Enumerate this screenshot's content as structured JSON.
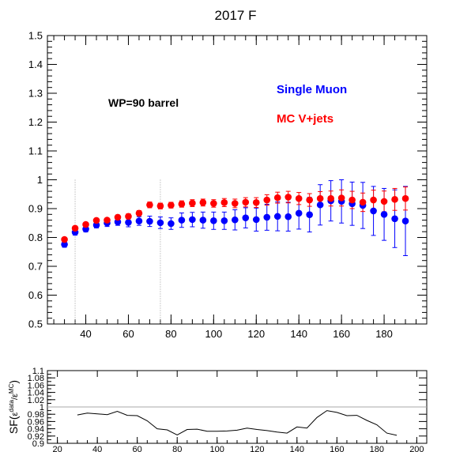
{
  "chart_data": [
    {
      "type": "scatter",
      "title": "2017 F",
      "xlabel": "",
      "ylabel": "",
      "xlim": [
        22,
        200
      ],
      "ylim": [
        0.5,
        1.5
      ],
      "xticks": [
        40,
        60,
        80,
        100,
        120,
        140,
        160,
        180
      ],
      "yticks": [
        0.5,
        0.6,
        0.7,
        0.8,
        0.9,
        1,
        1.1,
        1.2,
        1.3,
        1.4,
        1.5
      ],
      "annotation": "WP=90 barrel",
      "vlines": [
        35,
        75
      ],
      "series": [
        {
          "name": "Single Muon",
          "color": "#0000ff",
          "x": [
            30,
            35,
            40,
            45,
            50,
            55,
            60,
            65,
            70,
            75,
            80,
            85,
            90,
            95,
            100,
            105,
            110,
            115,
            120,
            125,
            130,
            135,
            140,
            145,
            150,
            155,
            160,
            165,
            170,
            175,
            180,
            185,
            190
          ],
          "y": [
            0.776,
            0.818,
            0.829,
            0.843,
            0.85,
            0.854,
            0.852,
            0.857,
            0.856,
            0.851,
            0.848,
            0.86,
            0.862,
            0.86,
            0.858,
            0.858,
            0.861,
            0.868,
            0.862,
            0.87,
            0.873,
            0.872,
            0.884,
            0.879,
            0.913,
            0.927,
            0.925,
            0.917,
            0.911,
            0.892,
            0.88,
            0.865,
            0.857
          ],
          "err": [
            0.01,
            0.01,
            0.01,
            0.01,
            0.012,
            0.012,
            0.015,
            0.015,
            0.018,
            0.02,
            0.02,
            0.025,
            0.025,
            0.028,
            0.03,
            0.03,
            0.035,
            0.035,
            0.04,
            0.045,
            0.05,
            0.05,
            0.055,
            0.06,
            0.07,
            0.07,
            0.075,
            0.075,
            0.08,
            0.085,
            0.09,
            0.1,
            0.12
          ]
        },
        {
          "name": "MC V+jets",
          "color": "#ff0000",
          "x": [
            30,
            35,
            40,
            45,
            50,
            55,
            60,
            65,
            70,
            75,
            80,
            85,
            90,
            95,
            100,
            105,
            110,
            115,
            120,
            125,
            130,
            135,
            140,
            145,
            150,
            155,
            160,
            165,
            170,
            175,
            180,
            185,
            190
          ],
          "y": [
            0.793,
            0.832,
            0.845,
            0.859,
            0.86,
            0.87,
            0.873,
            0.884,
            0.913,
            0.909,
            0.912,
            0.916,
            0.919,
            0.921,
            0.918,
            0.921,
            0.918,
            0.922,
            0.921,
            0.93,
            0.938,
            0.94,
            0.935,
            0.93,
            0.935,
            0.935,
            0.937,
            0.93,
            0.922,
            0.93,
            0.925,
            0.932,
            0.935
          ],
          "err": [
            0.005,
            0.006,
            0.006,
            0.007,
            0.007,
            0.008,
            0.009,
            0.009,
            0.01,
            0.01,
            0.01,
            0.011,
            0.012,
            0.012,
            0.013,
            0.014,
            0.015,
            0.016,
            0.017,
            0.018,
            0.019,
            0.02,
            0.021,
            0.022,
            0.024,
            0.026,
            0.028,
            0.03,
            0.032,
            0.034,
            0.036,
            0.038,
            0.04
          ]
        }
      ]
    },
    {
      "type": "line",
      "ylabel_main": "SF",
      "ylabel_num": "ε",
      "ylabel_num_sup": "data",
      "ylabel_den": "ε",
      "ylabel_den_sup": "MC",
      "xlim": [
        15,
        205
      ],
      "ylim": [
        0.9,
        1.1
      ],
      "xticks": [
        20,
        40,
        60,
        80,
        100,
        120,
        140,
        160,
        180,
        200
      ],
      "yticks": [
        0.9,
        0.92,
        0.94,
        0.96,
        0.98,
        1,
        1.02,
        1.04,
        1.06,
        1.08,
        1.1
      ],
      "reference_line": 1,
      "series": [
        {
          "name": "",
          "color": "#000000",
          "x": [
            30,
            35,
            40,
            45,
            50,
            55,
            60,
            65,
            70,
            75,
            80,
            85,
            90,
            95,
            100,
            105,
            110,
            115,
            120,
            125,
            130,
            135,
            140,
            145,
            150,
            155,
            160,
            165,
            170,
            175,
            180,
            185,
            190
          ],
          "y": [
            0.978,
            0.983,
            0.981,
            0.979,
            0.988,
            0.977,
            0.976,
            0.962,
            0.94,
            0.937,
            0.923,
            0.938,
            0.939,
            0.933,
            0.933,
            0.934,
            0.936,
            0.942,
            0.938,
            0.935,
            0.931,
            0.928,
            0.945,
            0.942,
            0.971,
            0.99,
            0.985,
            0.976,
            0.977,
            0.963,
            0.951,
            0.928,
            0.922
          ]
        }
      ]
    }
  ],
  "legend": {
    "items": [
      {
        "label": "Single Muon",
        "color": "#0000ff"
      },
      {
        "label": "MC V+jets",
        "color": "#ff0000"
      }
    ]
  }
}
